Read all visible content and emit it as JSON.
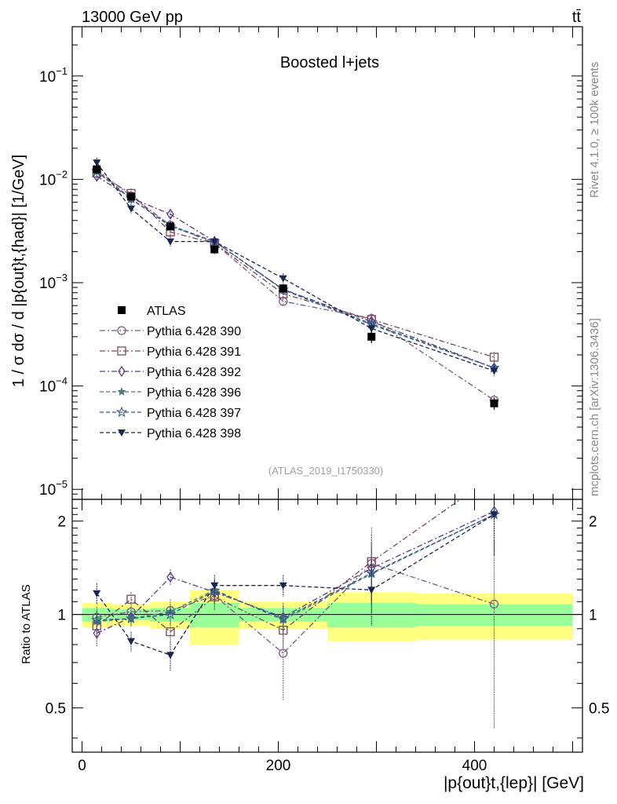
{
  "header": {
    "energy_label": "13000 GeV pp",
    "process_label": "tt̄"
  },
  "chart_data": {
    "type": "scatter",
    "title": "Boosted l+jets",
    "analysis_id": "(ATLAS_2019_I1750330)",
    "side_labels": {
      "rivet": "Rivet 4.1.0, ≥ 100k events",
      "source": "mcplots.cern.ch [arXiv:1306.3436]"
    },
    "ylabel": "1 / σ dσ / d |p{out}t,{had}| [1/GeV]",
    "xlabel": "|p{out}t,{lep}| [GeV]",
    "ratio_ylabel": "Ratio to ATLAS",
    "xlim": [
      -10,
      510
    ],
    "ylim": [
      8e-06,
      0.3
    ],
    "ratio_ylim": [
      0.36,
      2.35
    ],
    "y_ticks": [
      {
        "value": 0.1,
        "label": "10^-1"
      },
      {
        "value": 0.01,
        "label": "10^-2"
      },
      {
        "value": 0.001,
        "label": "10^-3"
      },
      {
        "value": 0.0001,
        "label": "10^-4"
      },
      {
        "value": 1e-05,
        "label": "10^-5"
      }
    ],
    "x_ticks": [
      {
        "value": 0,
        "label": "0"
      },
      {
        "value": 200,
        "label": "200"
      },
      {
        "value": 400,
        "label": "400"
      }
    ],
    "ratio_ticks": [
      {
        "value": 0.5,
        "label": "0.5"
      },
      {
        "value": 1,
        "label": "1"
      },
      {
        "value": 2,
        "label": "2"
      }
    ],
    "x": [
      15,
      50,
      90,
      135,
      205,
      295,
      420
    ],
    "bin_edges": [
      0,
      30,
      70,
      110,
      160,
      250,
      340,
      500
    ],
    "band_inner": [
      0.05,
      0.04,
      0.05,
      0.09,
      0.05,
      0.09,
      0.08
    ],
    "band_outer": [
      0.09,
      0.08,
      0.1,
      0.2,
      0.1,
      0.18,
      0.17
    ],
    "data": {
      "name": "ATLAS",
      "values": [
        0.0125,
        0.0068,
        0.0035,
        0.0021,
        0.00088,
        0.0003,
        6.8e-05
      ],
      "errors": [
        0.0009,
        0.0004,
        0.0003,
        0.0002,
        8e-05,
        4e-05,
        9e-06
      ]
    },
    "series": [
      {
        "name": "Pythia 6.428 390",
        "color": "#7a5a84",
        "marker": "circle-open",
        "dash": "7,3,2,3",
        "values": [
          0.0124,
          0.0069,
          0.0036,
          0.0024,
          0.00066,
          0.00045,
          7.3e-05
        ],
        "ratio": [
          0.98,
          1.02,
          1.03,
          1.15,
          0.75,
          1.46,
          1.08
        ],
        "ratio_err": [
          0.08,
          0.06,
          0.09,
          0.12,
          0.22,
          0.45,
          0.65
        ]
      },
      {
        "name": "Pythia 6.428 391",
        "color": "#7a4a56",
        "marker": "square-open",
        "dash": "7,3,2,3",
        "values": [
          0.0115,
          0.0073,
          0.0031,
          0.0024,
          0.00078,
          0.00044,
          0.00019
        ],
        "ratio": [
          0.92,
          1.12,
          0.88,
          1.14,
          0.89,
          1.48,
          2.8
        ],
        "ratio_err": [
          0.07,
          0.06,
          0.08,
          0.11,
          0.11,
          0.33,
          0.7
        ]
      },
      {
        "name": "Pythia 6.428 392",
        "color": "#5b3c8c",
        "marker": "diamond-open",
        "dash": "7,3,2,3",
        "values": [
          0.0107,
          0.0066,
          0.0046,
          0.0025,
          0.00086,
          0.00042,
          0.00015
        ],
        "ratio": [
          0.87,
          0.98,
          1.32,
          1.18,
          0.98,
          1.41,
          2.15
        ],
        "ratio_err": [
          0.08,
          0.06,
          0.08,
          0.1,
          0.11,
          0.3,
          0.55
        ]
      },
      {
        "name": "Pythia 6.428 396",
        "color": "#4a7a80",
        "marker": "star-filled",
        "dash": "5,3",
        "values": [
          0.0119,
          0.0064,
          0.0036,
          0.0025,
          0.00085,
          0.00039,
          0.00015
        ],
        "ratio": [
          0.95,
          0.97,
          1.02,
          1.2,
          0.96,
          1.35,
          2.1
        ],
        "ratio_err": [
          0.07,
          0.06,
          0.08,
          0.1,
          0.1,
          0.28,
          0.55
        ]
      },
      {
        "name": "Pythia 6.428 397",
        "color": "#3a5a8a",
        "marker": "star-open",
        "dash": "5,3",
        "values": [
          0.0121,
          0.0065,
          0.0035,
          0.0025,
          0.00086,
          0.0004,
          0.00015
        ],
        "ratio": [
          0.96,
          0.97,
          1.0,
          1.19,
          0.97,
          1.36,
          2.1
        ],
        "ratio_err": [
          0.07,
          0.06,
          0.08,
          0.1,
          0.1,
          0.28,
          0.55
        ]
      },
      {
        "name": "Pythia 6.428 398",
        "color": "#1a2550",
        "marker": "triangle-down-filled",
        "dash": "5,3",
        "values": [
          0.0145,
          0.0052,
          0.0025,
          0.0025,
          0.0011,
          0.00036,
          0.00014
        ],
        "ratio": [
          1.17,
          0.82,
          0.74,
          1.24,
          1.24,
          1.2,
          2.1
        ],
        "ratio_err": [
          0.09,
          0.06,
          0.08,
          0.1,
          0.1,
          0.28,
          0.55
        ]
      }
    ]
  }
}
